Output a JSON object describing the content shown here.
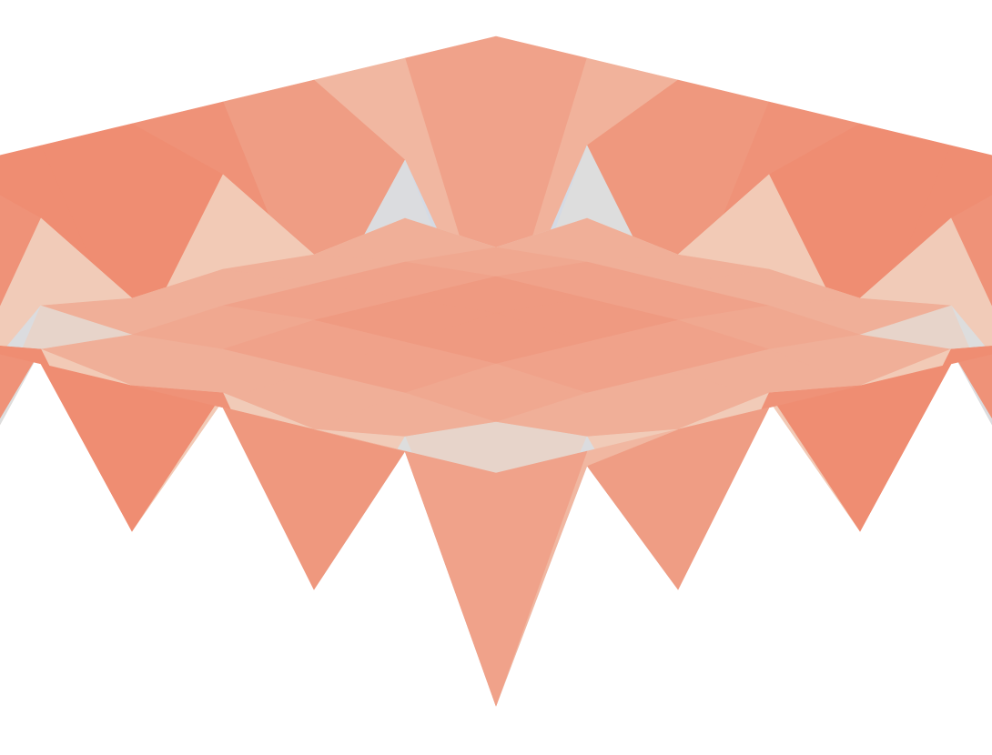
{
  "chart_data": {
    "type": "surface",
    "colormap": "coolwarm",
    "zlim": [
      -1,
      1
    ],
    "z": [
      [
        1.0,
        1.0,
        1.0,
        1.0,
        1.0,
        1.0,
        1.0,
        1.0,
        1.0,
        1.0,
        1.0
      ],
      [
        1.0,
        -0.9,
        0.7,
        -0.4,
        0.8,
        -0.3,
        0.8,
        -0.4,
        0.7,
        -0.9,
        1.0
      ],
      [
        1.0,
        0.6,
        -0.8,
        0.5,
        0.4,
        0.45,
        0.4,
        0.5,
        -0.8,
        0.6,
        1.0
      ],
      [
        1.0,
        -0.4,
        0.5,
        0.45,
        0.5,
        0.5,
        0.5,
        0.45,
        0.5,
        -0.4,
        1.0
      ],
      [
        1.0,
        0.8,
        0.4,
        0.5,
        0.55,
        0.55,
        0.55,
        0.5,
        0.4,
        0.8,
        1.0
      ],
      [
        1.0,
        -0.3,
        0.45,
        0.5,
        0.55,
        0.6,
        0.55,
        0.5,
        0.45,
        -0.3,
        1.0
      ],
      [
        1.0,
        0.8,
        0.4,
        0.5,
        0.55,
        0.55,
        0.55,
        0.5,
        0.4,
        0.8,
        1.0
      ],
      [
        1.0,
        -0.4,
        0.5,
        0.45,
        0.5,
        0.5,
        0.5,
        0.45,
        0.5,
        -0.4,
        1.0
      ],
      [
        1.0,
        0.6,
        -0.8,
        0.5,
        0.4,
        0.45,
        0.4,
        0.5,
        -0.8,
        0.6,
        1.0
      ],
      [
        1.0,
        -0.9,
        0.7,
        -0.4,
        0.8,
        -0.3,
        0.8,
        -0.4,
        0.7,
        -0.9,
        1.0
      ],
      [
        1.0,
        1.0,
        1.0,
        1.0,
        1.0,
        1.0,
        1.0,
        1.0,
        1.0,
        1.0,
        1.0
      ]
    ]
  }
}
